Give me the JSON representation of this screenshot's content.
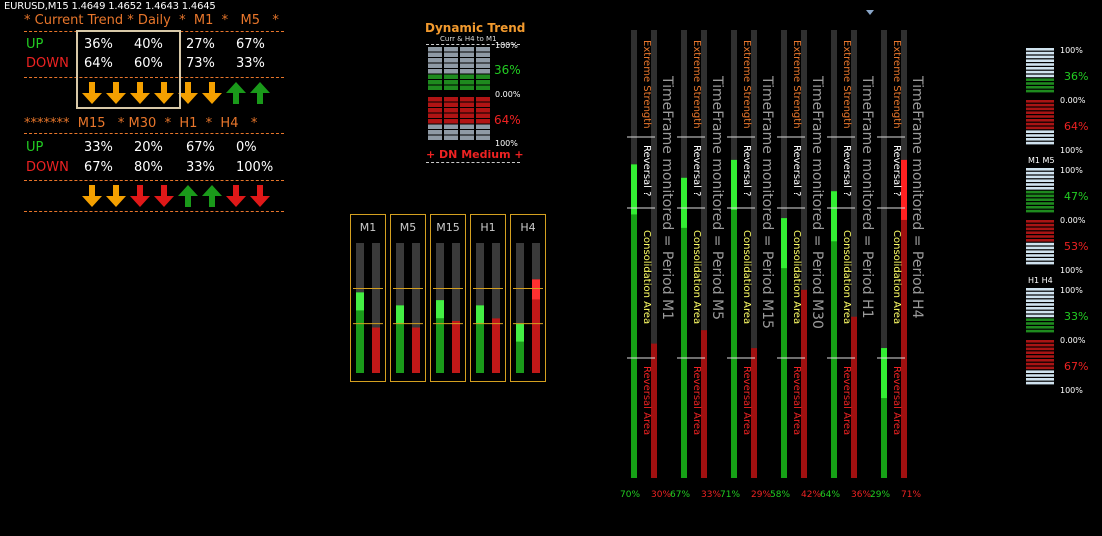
{
  "chart_symbol": "EURUSD,M15  1.4649 1.4652 1.4643 1.4645",
  "trend_table": {
    "header_row1": "* Current Trend * Daily  *  M1  *   M5   *",
    "header_row2": "*******  M15   * M30  *  H1  *  H4   *",
    "up_label": "UP",
    "down_label": "DOWN",
    "row1": {
      "up": [
        "36%",
        "40%",
        "27%",
        "67%"
      ],
      "down": [
        "64%",
        "60%",
        "73%",
        "33%"
      ],
      "arrows": [
        "down-orange",
        "down-orange",
        "down-orange",
        "down-orange",
        "down-orange",
        "down-orange",
        "up-green",
        "up-green"
      ]
    },
    "row2": {
      "up": [
        "33%",
        "20%",
        "67%",
        "0%"
      ],
      "down": [
        "67%",
        "80%",
        "33%",
        "100%"
      ],
      "arrows": [
        "down-orange",
        "down-orange",
        "down-red",
        "down-red",
        "up-green",
        "up-green",
        "down-red",
        "down-red"
      ]
    }
  },
  "dynamic_trend": {
    "title": "Dynamic Trend",
    "subtitle": "Curr & H4 to M1",
    "top_pct_top": "100%",
    "top_pct_mid": "36%",
    "top_pct_bot": "0.00%",
    "bot_pct_mid": "64%",
    "bot_pct_bot": "100%",
    "status": "+ DN Medium +"
  },
  "gauges": [
    {
      "label": "M1",
      "green": 0.62,
      "red": 0.35
    },
    {
      "label": "M5",
      "green": 0.52,
      "red": 0.35
    },
    {
      "label": "M15",
      "green": 0.56,
      "red": 0.4
    },
    {
      "label": "H1",
      "green": 0.52,
      "red": 0.42
    },
    {
      "label": "H4",
      "green": 0.38,
      "red": 0.72
    }
  ],
  "columns": [
    {
      "period": "TimeFrame monitored = Period M1",
      "green": 0.7,
      "red": 0.3,
      "green_label": "70%",
      "red_label": "30%"
    },
    {
      "period": "TimeFrame monitored = Period M5",
      "green": 0.67,
      "red": 0.33,
      "green_label": "67%",
      "red_label": "33%"
    },
    {
      "period": "TimeFrame monitored = Period M15",
      "green": 0.71,
      "red": 0.29,
      "green_label": "71%",
      "red_label": "29%"
    },
    {
      "period": "TimeFrame monitored = Period M30",
      "green": 0.58,
      "red": 0.42,
      "green_label": "58%",
      "red_label": "42%"
    },
    {
      "period": "TimeFrame monitored = Period H1",
      "green": 0.64,
      "red": 0.36,
      "green_label": "64%",
      "red_label": "36%"
    },
    {
      "period": "TimeFrame monitored = Period H4",
      "green": 0.29,
      "red": 0.71,
      "green_label": "29%",
      "red_label": "71%"
    }
  ],
  "zone_labels": {
    "extreme": "Extreme Strength",
    "reversal_q": "Reversal ?",
    "consolidation": "Consolidation Area",
    "reversal_area": "Reversal Area"
  },
  "right_panel": {
    "blocks": [
      {
        "label": "",
        "top": "100%",
        "green_pct": "36%",
        "mid": "0.00%",
        "red_pct": "64%",
        "bot": "100%"
      },
      {
        "label": "M1 M5",
        "top": "100%",
        "green_pct": "47%",
        "mid": "0.00%",
        "red_pct": "53%",
        "bot": "100%"
      },
      {
        "label": "H1 H4",
        "top": "100%",
        "green_pct": "33%",
        "mid": "0.00%",
        "red_pct": "67%",
        "bot": "100%"
      }
    ]
  },
  "colors": {
    "orange": "#e8762b",
    "green": "#22cc22",
    "red": "#ee2222",
    "gold": "#d4a020"
  }
}
